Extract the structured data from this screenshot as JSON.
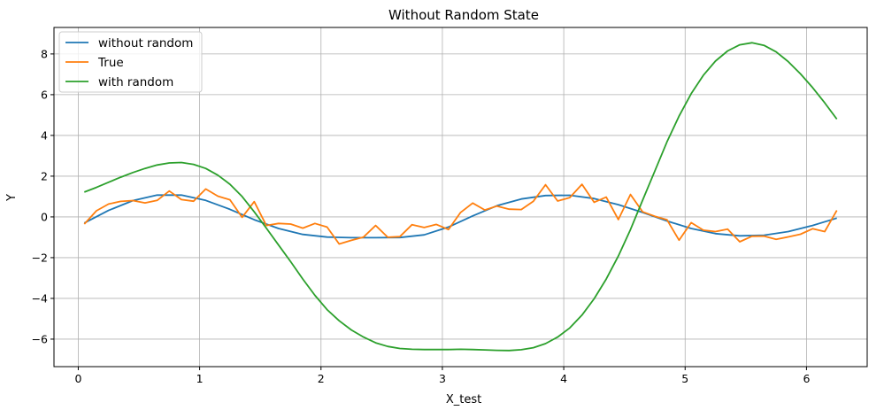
{
  "chart_data": {
    "type": "line",
    "title": "Without Random State",
    "xlabel": "X_test",
    "ylabel": "Y",
    "xlim": [
      -0.2,
      6.5
    ],
    "ylim": [
      -7.35,
      9.3
    ],
    "x_ticks": [
      0,
      1,
      2,
      3,
      4,
      5,
      6
    ],
    "x_tick_labels": [
      "0",
      "1",
      "2",
      "3",
      "4",
      "5",
      "6"
    ],
    "y_ticks": [
      -6,
      -4,
      -2,
      0,
      2,
      4,
      6,
      8
    ],
    "y_tick_labels": [
      "−6",
      "−4",
      "−2",
      "0",
      "2",
      "4",
      "6",
      "8"
    ],
    "grid": true,
    "legend_position": "top-left",
    "series": [
      {
        "name": "without random",
        "color": "#1f77b4",
        "x": [
          0.05,
          0.25,
          0.45,
          0.65,
          0.85,
          1.05,
          1.25,
          1.45,
          1.65,
          1.85,
          2.05,
          2.25,
          2.45,
          2.65,
          2.85,
          3.05,
          3.25,
          3.45,
          3.65,
          3.85,
          4.05,
          4.25,
          4.45,
          4.65,
          4.85,
          5.05,
          5.25,
          5.45,
          5.65,
          5.85,
          6.05,
          6.25
        ],
        "y": [
          -0.3,
          0.32,
          0.8,
          1.07,
          1.07,
          0.81,
          0.37,
          -0.14,
          -0.57,
          -0.86,
          -0.99,
          -1.02,
          -1.02,
          -1.01,
          -0.88,
          -0.5,
          0.05,
          0.55,
          0.88,
          1.05,
          1.06,
          0.9,
          0.6,
          0.22,
          -0.2,
          -0.57,
          -0.82,
          -0.93,
          -0.9,
          -0.72,
          -0.42,
          -0.06
        ]
      },
      {
        "name": "True",
        "color": "#ff7f0e",
        "x": [
          0.05,
          0.15,
          0.25,
          0.35,
          0.45,
          0.55,
          0.65,
          0.75,
          0.85,
          0.95,
          1.05,
          1.15,
          1.25,
          1.35,
          1.45,
          1.55,
          1.65,
          1.75,
          1.85,
          1.95,
          2.05,
          2.15,
          2.25,
          2.35,
          2.45,
          2.55,
          2.65,
          2.75,
          2.85,
          2.95,
          3.05,
          3.15,
          3.25,
          3.35,
          3.45,
          3.55,
          3.65,
          3.75,
          3.85,
          3.95,
          4.05,
          4.15,
          4.25,
          4.35,
          4.45,
          4.55,
          4.65,
          4.75,
          4.85,
          4.95,
          5.05,
          5.15,
          5.25,
          5.35,
          5.45,
          5.55,
          5.65,
          5.75,
          5.85,
          5.95,
          6.05,
          6.15,
          6.25
        ],
        "y": [
          -0.35,
          0.3,
          0.63,
          0.76,
          0.8,
          0.69,
          0.81,
          1.27,
          0.85,
          0.77,
          1.37,
          1.02,
          0.84,
          -0.02,
          0.75,
          -0.42,
          -0.32,
          -0.35,
          -0.55,
          -0.32,
          -0.5,
          -1.33,
          -1.15,
          -0.99,
          -0.42,
          -1.0,
          -0.97,
          -0.38,
          -0.52,
          -0.37,
          -0.62,
          0.22,
          0.68,
          0.34,
          0.53,
          0.38,
          0.36,
          0.77,
          1.58,
          0.78,
          0.95,
          1.6,
          0.72,
          0.97,
          -0.13,
          1.1,
          0.25,
          0.03,
          -0.14,
          -1.14,
          -0.28,
          -0.65,
          -0.72,
          -0.6,
          -1.22,
          -0.95,
          -0.94,
          -1.1,
          -0.98,
          -0.85,
          -0.58,
          -0.72,
          0.32
        ]
      },
      {
        "name": "with random",
        "color": "#2ca02c",
        "x": [
          0.05,
          0.15,
          0.25,
          0.35,
          0.45,
          0.55,
          0.65,
          0.75,
          0.85,
          0.95,
          1.05,
          1.15,
          1.25,
          1.35,
          1.45,
          1.55,
          1.65,
          1.75,
          1.85,
          1.95,
          2.05,
          2.15,
          2.25,
          2.35,
          2.45,
          2.55,
          2.65,
          2.75,
          2.85,
          2.95,
          3.05,
          3.15,
          3.25,
          3.35,
          3.45,
          3.55,
          3.65,
          3.75,
          3.85,
          3.95,
          4.05,
          4.15,
          4.25,
          4.35,
          4.45,
          4.55,
          4.65,
          4.75,
          4.85,
          4.95,
          5.05,
          5.15,
          5.25,
          5.35,
          5.45,
          5.55,
          5.65,
          5.75,
          5.85,
          5.95,
          6.05,
          6.15,
          6.25
        ],
        "y": [
          1.22,
          1.45,
          1.7,
          1.95,
          2.18,
          2.38,
          2.55,
          2.65,
          2.67,
          2.58,
          2.38,
          2.05,
          1.6,
          1.0,
          0.25,
          -0.55,
          -1.38,
          -2.2,
          -3.05,
          -3.85,
          -4.55,
          -5.1,
          -5.55,
          -5.9,
          -6.18,
          -6.36,
          -6.46,
          -6.5,
          -6.51,
          -6.51,
          -6.51,
          -6.5,
          -6.51,
          -6.53,
          -6.55,
          -6.56,
          -6.52,
          -6.42,
          -6.22,
          -5.9,
          -5.45,
          -4.82,
          -4.02,
          -3.05,
          -1.92,
          -0.62,
          0.82,
          2.25,
          3.68,
          4.95,
          6.05,
          6.95,
          7.65,
          8.15,
          8.45,
          8.55,
          8.42,
          8.1,
          7.62,
          7.02,
          6.35,
          5.6,
          4.8
        ]
      }
    ]
  }
}
